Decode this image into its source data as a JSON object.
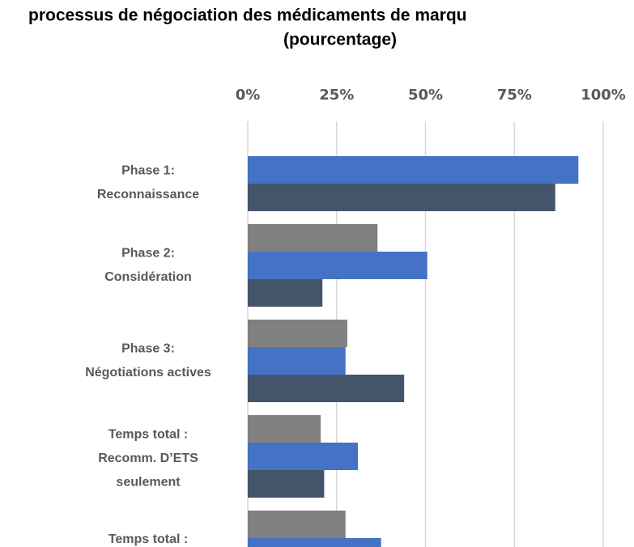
{
  "chart_data": {
    "type": "hbar",
    "title": [
      "processus de négociation des médicaments de marqu",
      "(pourcentage)"
    ],
    "categories": [
      [
        "Phase 1:",
        "Reconnaissance"
      ],
      [
        "Phase 2:",
        "Considération"
      ],
      [
        "Phase 3:",
        "Négotiations actives"
      ],
      [
        "Temps total :",
        "Recomm. D’ETS",
        "seulement"
      ],
      [
        "Temps total :"
      ]
    ],
    "series": [
      {
        "color": "#808080",
        "values": [
          null,
          36.5,
          28,
          20.5,
          27.5
        ]
      },
      {
        "color": "#4472c4",
        "values": [
          93,
          50.5,
          27.5,
          31,
          37.5
        ]
      },
      {
        "color": "#44546a",
        "values": [
          86.5,
          21,
          44,
          21.5,
          null
        ]
      }
    ],
    "xlim": [
      0,
      100
    ],
    "xticks": [
      {
        "value": 0,
        "label": "0%"
      },
      {
        "value": 25,
        "label": "25%"
      },
      {
        "value": 50,
        "label": "50%"
      },
      {
        "value": 75,
        "label": "75%"
      },
      {
        "value": 100,
        "label": "100%"
      }
    ],
    "grid": true
  }
}
